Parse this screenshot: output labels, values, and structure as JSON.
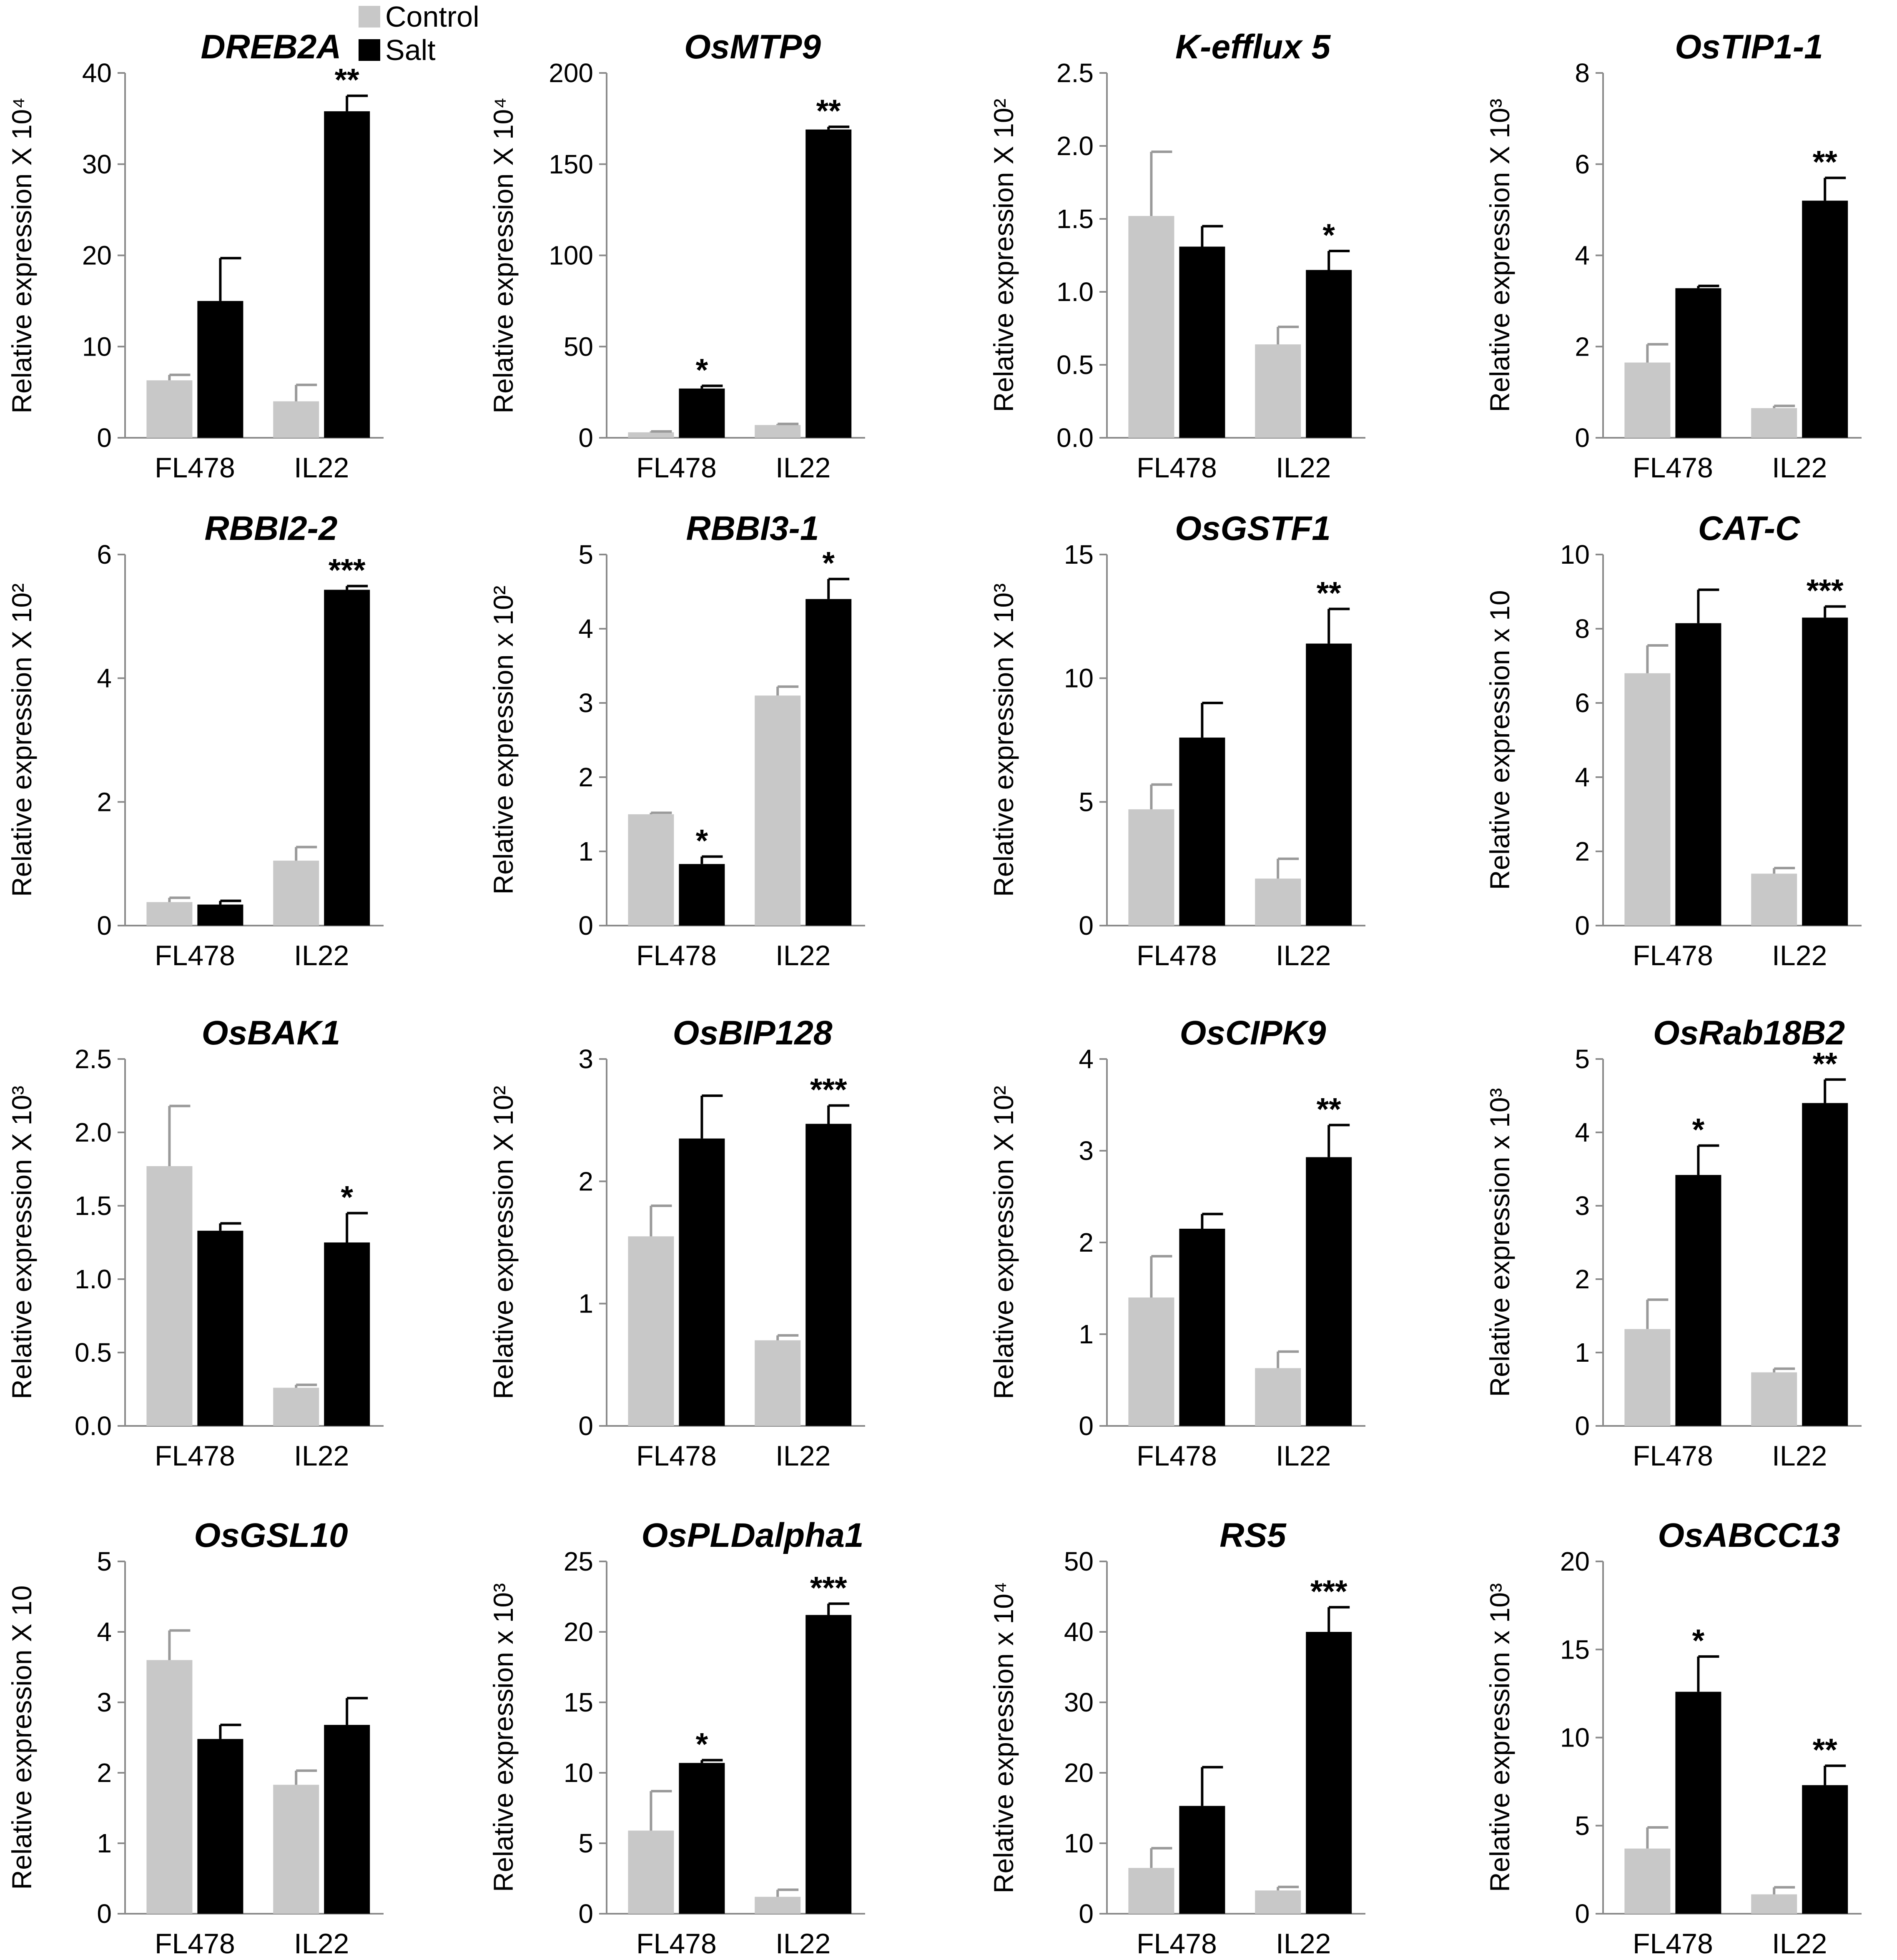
{
  "legend": {
    "control_label": "Control",
    "salt_label": "Salt",
    "control_color": "#c8c8c8",
    "salt_color": "#000000"
  },
  "chart_data": [
    {
      "type": "bar",
      "title": "DREB2A",
      "ylabel": "Relative expression X 10⁴",
      "categories": [
        "FL478",
        "IL22"
      ],
      "ylim": [
        0,
        40
      ],
      "yticks": [
        "0",
        "10",
        "20",
        "30",
        "40"
      ],
      "series": [
        {
          "name": "Control",
          "values": [
            6.3,
            4.0
          ],
          "errors": [
            0.6,
            1.8
          ]
        },
        {
          "name": "Salt",
          "values": [
            15.0,
            35.8
          ],
          "errors": [
            4.7,
            1.7
          ]
        }
      ],
      "annotations": [
        "",
        "**"
      ]
    },
    {
      "type": "bar",
      "title": "OsMTP9",
      "ylabel": "Relative expression X 10⁴",
      "categories": [
        "FL478",
        "IL22"
      ],
      "ylim": [
        0,
        200
      ],
      "yticks": [
        "0",
        "50",
        "100",
        "150",
        "200"
      ],
      "series": [
        {
          "name": "Control",
          "values": [
            3,
            7
          ],
          "errors": [
            0.5,
            0.6
          ]
        },
        {
          "name": "Salt",
          "values": [
            27,
            169
          ],
          "errors": [
            1.5,
            1.5
          ]
        }
      ],
      "annotations": [
        "*",
        "**"
      ]
    },
    {
      "type": "bar",
      "title": "K-efflux 5",
      "ylabel": "Relative expression X 10²",
      "categories": [
        "FL478",
        "IL22"
      ],
      "ylim": [
        0,
        2.5
      ],
      "yticks": [
        "0.0",
        "0.5",
        "1.0",
        "1.5",
        "2.0",
        "2.5"
      ],
      "series": [
        {
          "name": "Control",
          "values": [
            1.52,
            0.64
          ],
          "errors": [
            0.44,
            0.12
          ]
        },
        {
          "name": "Salt",
          "values": [
            1.31,
            1.15
          ],
          "errors": [
            0.14,
            0.13
          ]
        }
      ],
      "annotations": [
        "",
        "*"
      ]
    },
    {
      "type": "bar",
      "title": "OsTIP1-1",
      "ylabel": "Relative expression X 10³",
      "categories": [
        "FL478",
        "IL22"
      ],
      "ylim": [
        0,
        8
      ],
      "yticks": [
        "0",
        "2",
        "4",
        "6",
        "8"
      ],
      "series": [
        {
          "name": "Control",
          "values": [
            1.65,
            0.65
          ],
          "errors": [
            0.4,
            0.05
          ]
        },
        {
          "name": "Salt",
          "values": [
            3.28,
            5.2
          ],
          "errors": [
            0.05,
            0.5
          ]
        }
      ],
      "annotations": [
        "",
        "**"
      ]
    },
    {
      "type": "bar",
      "title": "RBBI2-2",
      "ylabel": "Relative expression X 10²",
      "categories": [
        "FL478",
        "IL22"
      ],
      "ylim": [
        0,
        6
      ],
      "yticks": [
        "0",
        "2",
        "4",
        "6"
      ],
      "series": [
        {
          "name": "Control",
          "values": [
            0.38,
            1.05
          ],
          "errors": [
            0.07,
            0.22
          ]
        },
        {
          "name": "Salt",
          "values": [
            0.34,
            5.43
          ],
          "errors": [
            0.06,
            0.06
          ]
        }
      ],
      "annotations": [
        "",
        "***"
      ]
    },
    {
      "type": "bar",
      "title": "RBBI3-1",
      "ylabel": "Relative expression x 10²",
      "categories": [
        "FL478",
        "IL22"
      ],
      "ylim": [
        0,
        5
      ],
      "yticks": [
        "0",
        "1",
        "2",
        "3",
        "4",
        "5"
      ],
      "series": [
        {
          "name": "Control",
          "values": [
            1.5,
            3.1
          ],
          "errors": [
            0.02,
            0.12
          ]
        },
        {
          "name": "Salt",
          "values": [
            0.83,
            4.4
          ],
          "errors": [
            0.1,
            0.27
          ]
        }
      ],
      "annotations": [
        "*",
        "*"
      ]
    },
    {
      "type": "bar",
      "title": "OsGSTF1",
      "ylabel": "Relative expression  X 10³",
      "categories": [
        "FL478",
        "IL22"
      ],
      "ylim": [
        0,
        15
      ],
      "yticks": [
        "0",
        "5",
        "10",
        "15"
      ],
      "series": [
        {
          "name": "Control",
          "values": [
            4.7,
            1.9
          ],
          "errors": [
            1.0,
            0.8
          ]
        },
        {
          "name": "Salt",
          "values": [
            7.6,
            11.4
          ],
          "errors": [
            1.4,
            1.4
          ]
        }
      ],
      "annotations": [
        "",
        "**"
      ]
    },
    {
      "type": "bar",
      "title": "CAT-C",
      "ylabel": "Relative expression x 10",
      "categories": [
        "FL478",
        "IL22"
      ],
      "ylim": [
        0,
        10
      ],
      "yticks": [
        "0",
        "2",
        "4",
        "6",
        "8",
        "10"
      ],
      "series": [
        {
          "name": "Control",
          "values": [
            6.8,
            1.4
          ],
          "errors": [
            0.75,
            0.15
          ]
        },
        {
          "name": "Salt",
          "values": [
            8.15,
            8.3
          ],
          "errors": [
            0.9,
            0.3
          ]
        }
      ],
      "annotations": [
        "",
        "***"
      ]
    },
    {
      "type": "bar",
      "title": "OsBAK1",
      "ylabel": "Relative expression X 10³",
      "categories": [
        "FL478",
        "IL22"
      ],
      "ylim": [
        0,
        2.5
      ],
      "yticks": [
        "0.0",
        "0.5",
        "1.0",
        "1.5",
        "2.0",
        "2.5"
      ],
      "series": [
        {
          "name": "Control",
          "values": [
            1.77,
            0.26
          ],
          "errors": [
            0.41,
            0.02
          ]
        },
        {
          "name": "Salt",
          "values": [
            1.33,
            1.25
          ],
          "errors": [
            0.05,
            0.2
          ]
        }
      ],
      "annotations": [
        "",
        "*"
      ]
    },
    {
      "type": "bar",
      "title": "OsBIP128",
      "ylabel": "Relative expression X 10²",
      "categories": [
        "FL478",
        "IL22"
      ],
      "ylim": [
        0,
        3
      ],
      "yticks": [
        "0",
        "1",
        "2",
        "3"
      ],
      "series": [
        {
          "name": "Control",
          "values": [
            1.55,
            0.7
          ],
          "errors": [
            0.25,
            0.04
          ]
        },
        {
          "name": "Salt",
          "values": [
            2.35,
            2.47
          ],
          "errors": [
            0.35,
            0.15
          ]
        }
      ],
      "annotations": [
        "",
        "***"
      ]
    },
    {
      "type": "bar",
      "title": "OsCIPK9",
      "ylabel": "Relative expression X 10²",
      "categories": [
        "FL478",
        "IL22"
      ],
      "ylim": [
        0,
        4
      ],
      "yticks": [
        "0",
        "1",
        "2",
        "3",
        "4"
      ],
      "series": [
        {
          "name": "Control",
          "values": [
            1.4,
            0.63
          ],
          "errors": [
            0.45,
            0.18
          ]
        },
        {
          "name": "Salt",
          "values": [
            2.15,
            2.93
          ],
          "errors": [
            0.16,
            0.35
          ]
        }
      ],
      "annotations": [
        "",
        "**"
      ]
    },
    {
      "type": "bar",
      "title": "OsRab18B2",
      "ylabel": "Relative expression x 10³",
      "categories": [
        "FL478",
        "IL22"
      ],
      "ylim": [
        0,
        5
      ],
      "yticks": [
        "0",
        "1",
        "2",
        "3",
        "4",
        "5"
      ],
      "series": [
        {
          "name": "Control",
          "values": [
            1.32,
            0.73
          ],
          "errors": [
            0.4,
            0.05
          ]
        },
        {
          "name": "Salt",
          "values": [
            3.42,
            4.4
          ],
          "errors": [
            0.4,
            0.32
          ]
        }
      ],
      "annotations": [
        "*",
        "**"
      ]
    },
    {
      "type": "bar",
      "title": "OsGSL10",
      "ylabel": "Relative expression X 10",
      "categories": [
        "FL478",
        "IL22"
      ],
      "ylim": [
        0,
        5
      ],
      "yticks": [
        "0",
        "1",
        "2",
        "3",
        "4",
        "5"
      ],
      "series": [
        {
          "name": "Control",
          "values": [
            3.6,
            1.83
          ],
          "errors": [
            0.42,
            0.2
          ]
        },
        {
          "name": "Salt",
          "values": [
            2.48,
            2.68
          ],
          "errors": [
            0.2,
            0.38
          ]
        }
      ],
      "annotations": [
        "",
        ""
      ]
    },
    {
      "type": "bar",
      "title": "OsPLDalpha1",
      "ylabel": "Relative expression x 10³",
      "categories": [
        "FL478",
        "IL22"
      ],
      "ylim": [
        0,
        25
      ],
      "yticks": [
        "0",
        "5",
        "10",
        "15",
        "20",
        "25"
      ],
      "series": [
        {
          "name": "Control",
          "values": [
            5.9,
            1.2
          ],
          "errors": [
            2.8,
            0.5
          ]
        },
        {
          "name": "Salt",
          "values": [
            10.7,
            21.2
          ],
          "errors": [
            0.2,
            0.8
          ]
        }
      ],
      "annotations": [
        "*",
        "***"
      ]
    },
    {
      "type": "bar",
      "title": "RS5",
      "ylabel": "Relative expression x 10⁴",
      "categories": [
        "FL478",
        "IL22"
      ],
      "ylim": [
        0,
        50
      ],
      "yticks": [
        "0",
        "10",
        "20",
        "30",
        "40",
        "50"
      ],
      "series": [
        {
          "name": "Control",
          "values": [
            6.5,
            3.3
          ],
          "errors": [
            2.8,
            0.5
          ]
        },
        {
          "name": "Salt",
          "values": [
            15.3,
            40
          ],
          "errors": [
            5.5,
            3.5
          ]
        }
      ],
      "annotations": [
        "",
        "***"
      ]
    },
    {
      "type": "bar",
      "title": "OsABCC13",
      "ylabel": "Relative expression x 10³",
      "categories": [
        "FL478",
        "IL22"
      ],
      "ylim": [
        0,
        20
      ],
      "yticks": [
        "0",
        "5",
        "10",
        "15",
        "20"
      ],
      "series": [
        {
          "name": "Control",
          "values": [
            3.7,
            1.1
          ],
          "errors": [
            1.2,
            0.4
          ]
        },
        {
          "name": "Salt",
          "values": [
            12.6,
            7.3
          ],
          "errors": [
            2.0,
            1.1
          ]
        }
      ],
      "annotations": [
        "*",
        "**"
      ]
    }
  ]
}
